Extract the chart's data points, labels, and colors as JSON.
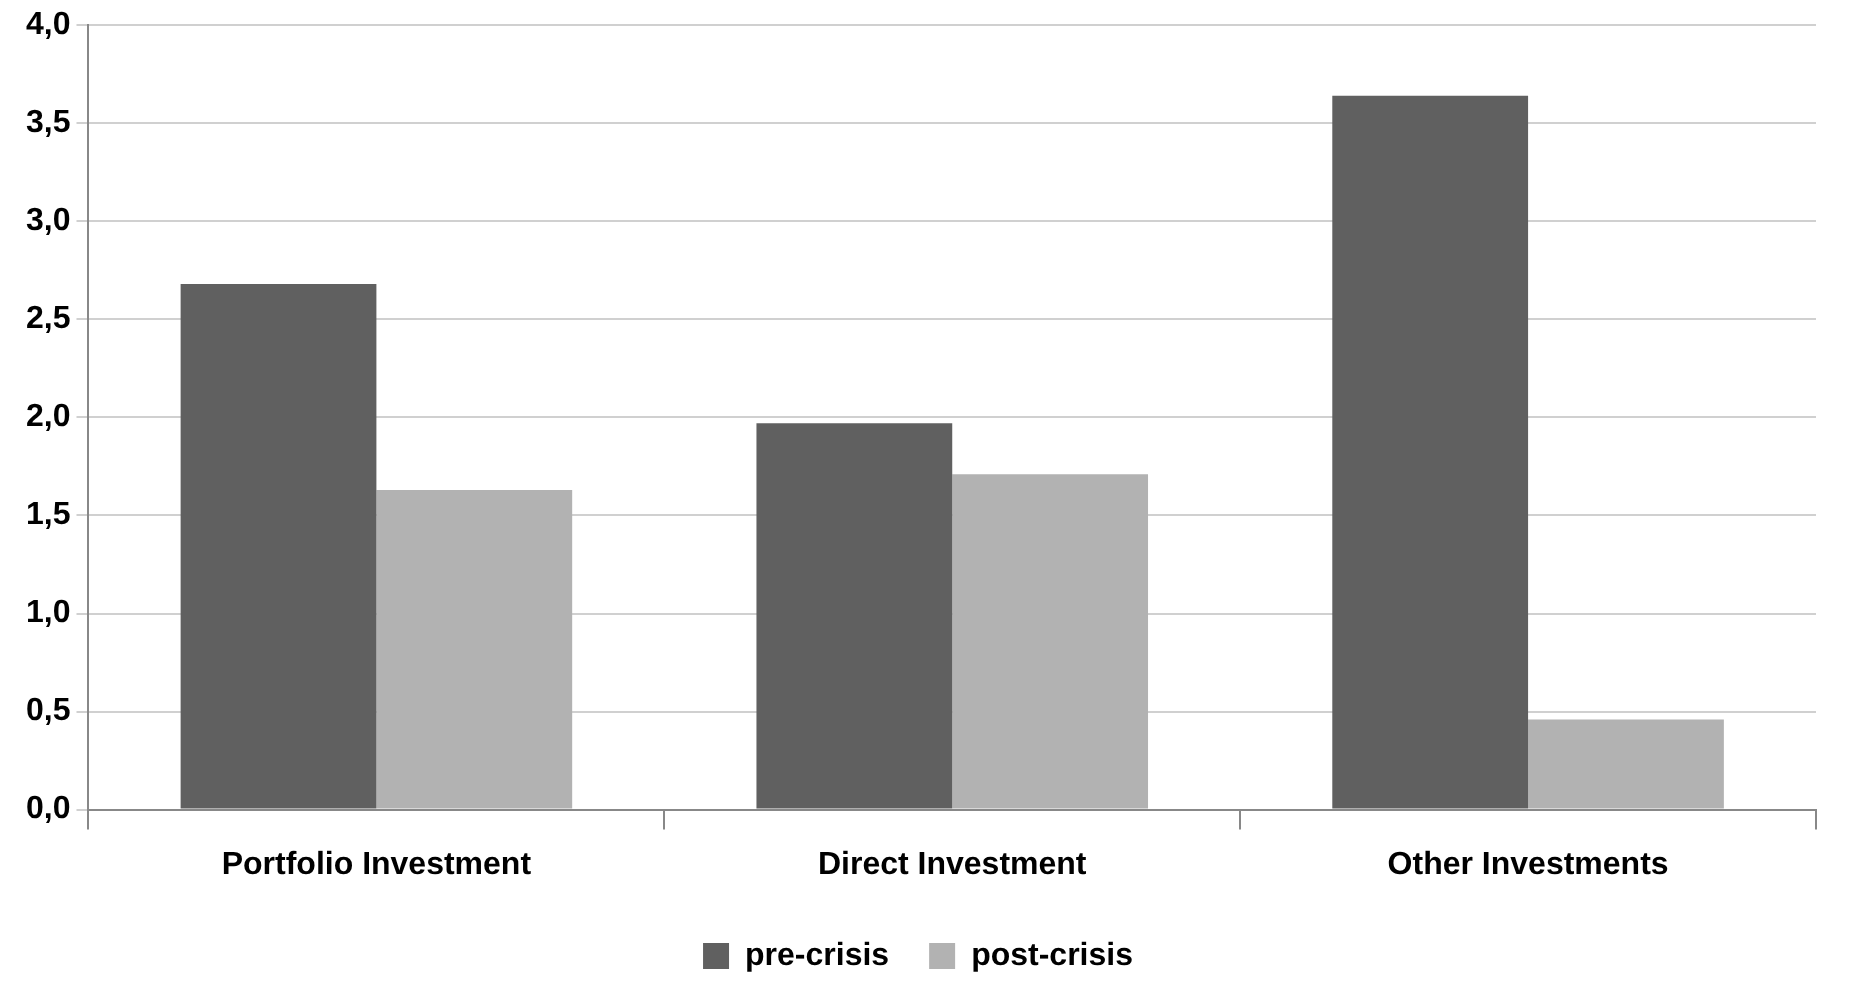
{
  "chart_data": {
    "type": "bar",
    "categories": [
      "Portfolio Investment",
      "Direct Investment",
      "Other Investments"
    ],
    "series": [
      {
        "name": "pre-crisis",
        "color": "#606060",
        "values": [
          2.68,
          1.97,
          3.64
        ]
      },
      {
        "name": "post-crisis",
        "color": "#b2b2b2",
        "values": [
          1.63,
          1.71,
          0.46
        ]
      }
    ],
    "ylim": [
      0,
      4
    ],
    "yticks": [
      {
        "value": 0,
        "label": "0,0"
      },
      {
        "value": 0.5,
        "label": "0,5"
      },
      {
        "value": 1,
        "label": "1,0"
      },
      {
        "value": 1.5,
        "label": "1,5"
      },
      {
        "value": 2,
        "label": "2,0"
      },
      {
        "value": 2.5,
        "label": "2,5"
      },
      {
        "value": 3,
        "label": "3,0"
      },
      {
        "value": 3.5,
        "label": "3,5"
      },
      {
        "value": 4,
        "label": "4,0"
      }
    ],
    "grid": "y",
    "legend": "bottom"
  }
}
